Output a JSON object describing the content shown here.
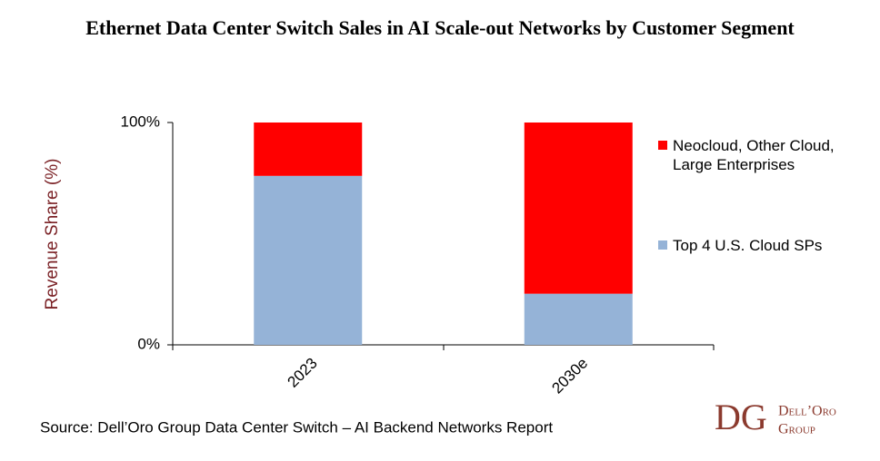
{
  "chart_data": {
    "type": "stacked-bar",
    "title": "Ethernet Data Center Switch Sales in AI Scale-out Networks by Customer Segment",
    "y_label": "Revenue  Share (%)",
    "categories": [
      "2023",
      "2030e"
    ],
    "series": [
      {
        "name": "Top 4 U.S. Cloud SPs",
        "color": "#95b3d7",
        "values": [
          76,
          23
        ]
      },
      {
        "name": "Neocloud, Other Cloud, Large Enterprises",
        "color": "#ff0000",
        "values": [
          24,
          77
        ]
      }
    ],
    "ylim": [
      0,
      100
    ],
    "yticks": [
      {
        "value": 0,
        "label": "0%"
      },
      {
        "value": 100,
        "label": "100%"
      }
    ],
    "legend": "right",
    "source": "Source: Dell’Oro Group Data Center Switch – AI Backend Networks Report",
    "logo": {
      "mark": "DG",
      "line1": "Dell’Oro",
      "line2": "Group"
    }
  }
}
